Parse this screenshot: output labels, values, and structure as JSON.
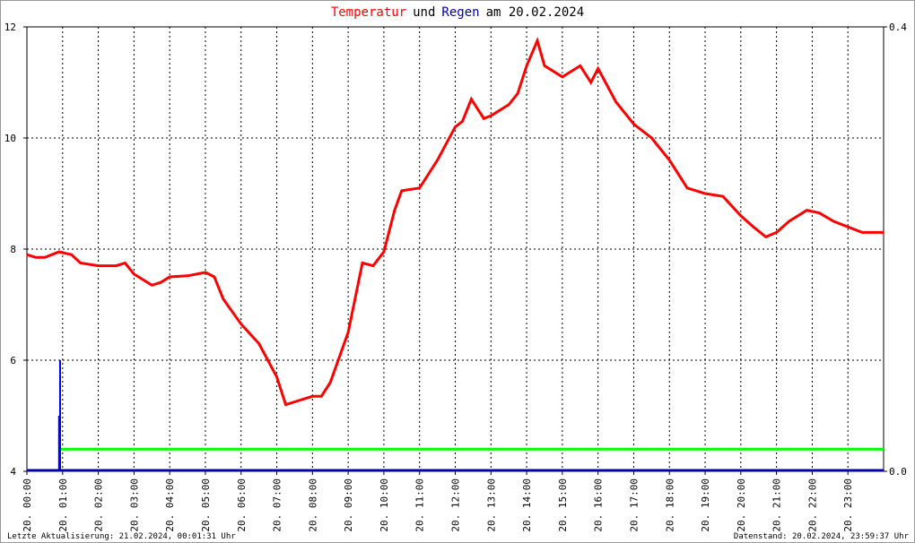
{
  "chart_data": {
    "type": "line",
    "title_parts": [
      {
        "text": "Temperatur",
        "color": "#ff0000"
      },
      {
        "text": "und",
        "color": "#000000"
      },
      {
        "text": "Regen",
        "color": "#0000aa"
      },
      {
        "text": "am 20.02.2024",
        "color": "#000000"
      }
    ],
    "xlim": [
      0,
      24
    ],
    "xticks": [
      {
        "value": 0,
        "label": "20. 00:00"
      },
      {
        "value": 1,
        "label": "20. 01:00"
      },
      {
        "value": 2,
        "label": "20. 02:00"
      },
      {
        "value": 3,
        "label": "20. 03:00"
      },
      {
        "value": 4,
        "label": "20. 04:00"
      },
      {
        "value": 5,
        "label": "20. 05:00"
      },
      {
        "value": 6,
        "label": "20. 06:00"
      },
      {
        "value": 7,
        "label": "20. 07:00"
      },
      {
        "value": 8,
        "label": "20. 08:00"
      },
      {
        "value": 9,
        "label": "20. 09:00"
      },
      {
        "value": 10,
        "label": "20. 10:00"
      },
      {
        "value": 11,
        "label": "20. 11:00"
      },
      {
        "value": 12,
        "label": "20. 12:00"
      },
      {
        "value": 13,
        "label": "20. 13:00"
      },
      {
        "value": 14,
        "label": "20. 14:00"
      },
      {
        "value": 15,
        "label": "20. 15:00"
      },
      {
        "value": 16,
        "label": "20. 16:00"
      },
      {
        "value": 17,
        "label": "20. 17:00"
      },
      {
        "value": 18,
        "label": "20. 18:00"
      },
      {
        "value": 19,
        "label": "20. 19:00"
      },
      {
        "value": 20,
        "label": "20. 20:00"
      },
      {
        "value": 21,
        "label": "20. 21:00"
      },
      {
        "value": 22,
        "label": "20. 22:00"
      },
      {
        "value": 23,
        "label": "20. 23:00"
      }
    ],
    "ylim": [
      4,
      12
    ],
    "yticks": [
      4,
      6,
      8,
      10,
      12
    ],
    "y2lim": [
      0,
      0.4
    ],
    "y2ticks": [
      {
        "value": 0,
        "label": "0.0"
      },
      {
        "value": 0.4,
        "label": "0.4"
      }
    ],
    "grid": true,
    "series": [
      {
        "name": "Temperatur",
        "color": "#ff0000",
        "kind": "line",
        "x": [
          0,
          0.25,
          0.5,
          0.9,
          1.25,
          1.5,
          2,
          2.5,
          2.75,
          3,
          3.5,
          3.75,
          4,
          4.5,
          5,
          5.25,
          5.5,
          6,
          6.5,
          7,
          7.25,
          7.5,
          8,
          8.25,
          8.5,
          9,
          9.4,
          9.7,
          10,
          10.3,
          10.5,
          11,
          11.5,
          12,
          12.2,
          12.45,
          12.8,
          13,
          13.5,
          13.75,
          14,
          14.3,
          14.5,
          15,
          15.5,
          15.8,
          16,
          16.5,
          17,
          17.5,
          18,
          18.5,
          19,
          19.5,
          20,
          20.35,
          20.7,
          21,
          21.35,
          21.85,
          22.2,
          22.6,
          23,
          23.4,
          24
        ],
        "values": [
          7.9,
          7.85,
          7.85,
          7.95,
          7.9,
          7.75,
          7.7,
          7.7,
          7.75,
          7.55,
          7.35,
          7.4,
          7.5,
          7.52,
          7.58,
          7.5,
          7.1,
          6.65,
          6.3,
          5.7,
          5.2,
          5.25,
          5.35,
          5.35,
          5.6,
          6.5,
          7.75,
          7.7,
          7.95,
          8.7,
          9.05,
          9.1,
          9.6,
          10.2,
          10.3,
          10.7,
          10.35,
          10.4,
          10.6,
          10.8,
          11.3,
          11.75,
          11.3,
          11.1,
          11.3,
          11.0,
          11.25,
          10.65,
          10.25,
          10.0,
          9.6,
          9.1,
          9.0,
          8.95,
          8.6,
          8.4,
          8.22,
          8.3,
          8.5,
          8.7,
          8.65,
          8.5,
          8.4,
          8.3,
          8.3
        ]
      },
      {
        "name": "Regen",
        "color": "#0000ff",
        "kind": "bar",
        "axis": "y2",
        "x": [
          0.9,
          0.93
        ],
        "values": [
          0.05,
          0.1
        ]
      },
      {
        "color": "#00ff00",
        "kind": "line",
        "axis": "y2",
        "x": [
          0.95,
          24
        ],
        "values": [
          0.02,
          0.02
        ]
      }
    ],
    "footer_left": "Letzte Aktualisierung: 21.02.2024, 00:01:31 Uhr",
    "footer_right": "Datenstand: 20.02.2024, 23:59:37 Uhr"
  }
}
